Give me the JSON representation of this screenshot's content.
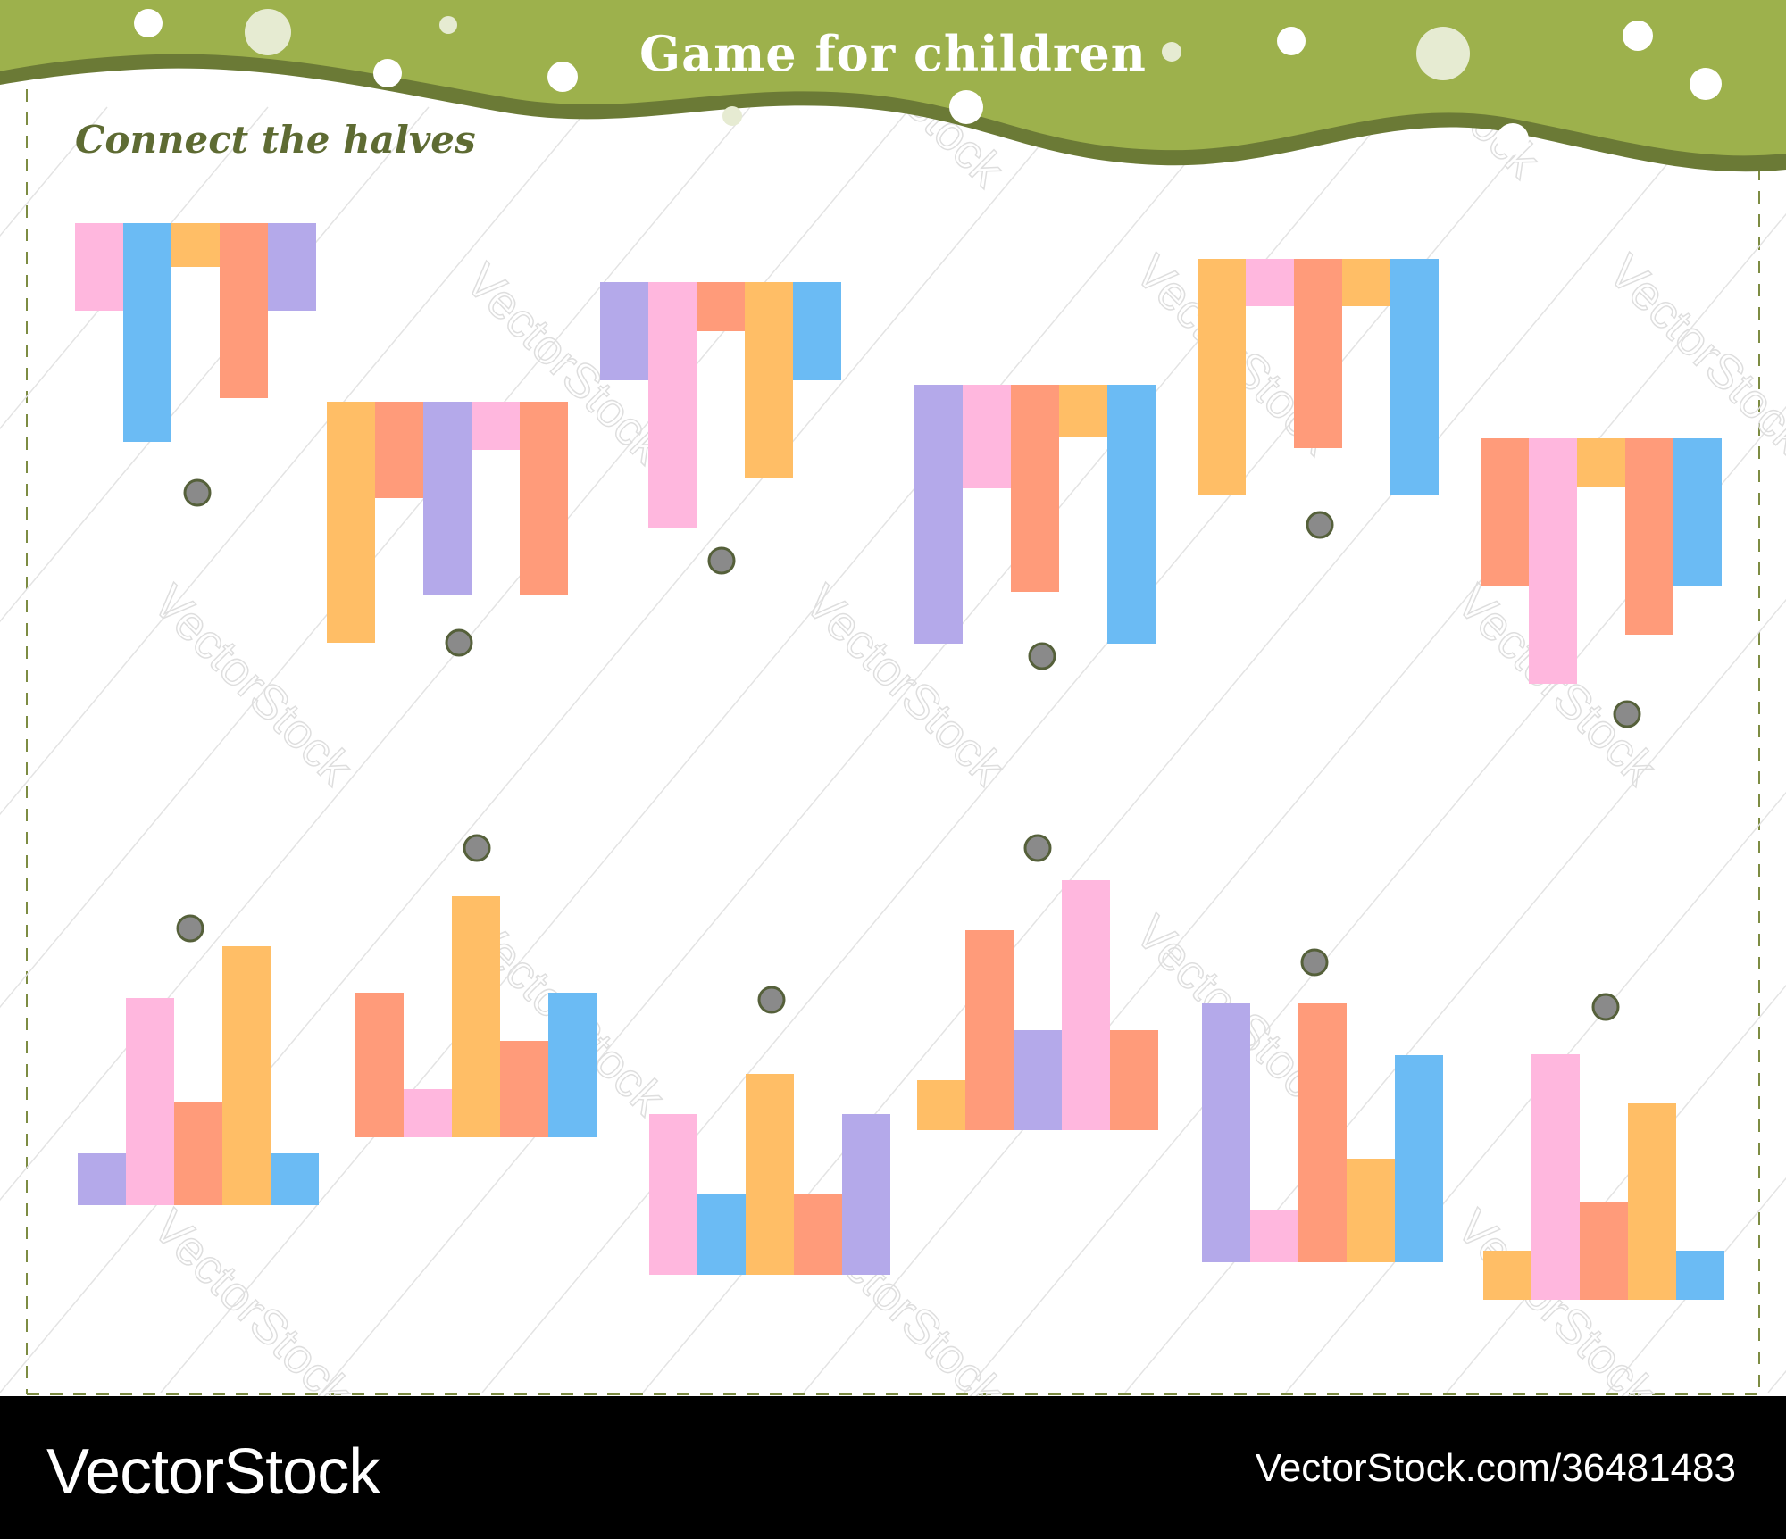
{
  "header": {
    "title": "Game for children",
    "instruction": "Connect the halves"
  },
  "footer": {
    "brand": "VectorStock",
    "image_id": "VectorStock.com/36481483"
  },
  "watermark": "VectorStock",
  "colors": {
    "header_band": "#9db14c",
    "header_band_dark": "#6b7a36",
    "pink": "#ffb7de",
    "blue": "#6bbbf4",
    "orange": "#ffbe66",
    "salmon": "#ff9b7a",
    "purple": "#b4a9ea",
    "dot": "#8a8a8a",
    "dot_border": "#55603a",
    "dashed_border": "#7d8c43"
  },
  "puzzle": {
    "top_halves": [
      {
        "id": "T1",
        "bars": [
          {
            "color": "pink",
            "length": 2
          },
          {
            "color": "blue",
            "length": 5
          },
          {
            "color": "orange",
            "length": 1
          },
          {
            "color": "salmon",
            "length": 4
          },
          {
            "color": "purple",
            "length": 2
          }
        ]
      },
      {
        "id": "T2",
        "bars": [
          {
            "color": "orange",
            "length": 5
          },
          {
            "color": "salmon",
            "length": 2
          },
          {
            "color": "purple",
            "length": 4
          },
          {
            "color": "pink",
            "length": 1
          },
          {
            "color": "salmon",
            "length": 4
          }
        ]
      },
      {
        "id": "T3",
        "bars": [
          {
            "color": "purple",
            "length": 2
          },
          {
            "color": "pink",
            "length": 5
          },
          {
            "color": "salmon",
            "length": 1
          },
          {
            "color": "orange",
            "length": 4
          },
          {
            "color": "blue",
            "length": 2
          }
        ]
      },
      {
        "id": "T4",
        "bars": [
          {
            "color": "purple",
            "length": 5
          },
          {
            "color": "pink",
            "length": 2
          },
          {
            "color": "salmon",
            "length": 4
          },
          {
            "color": "orange",
            "length": 1
          },
          {
            "color": "blue",
            "length": 5
          }
        ]
      },
      {
        "id": "T5",
        "bars": [
          {
            "color": "orange",
            "length": 5
          },
          {
            "color": "pink",
            "length": 1
          },
          {
            "color": "salmon",
            "length": 4
          },
          {
            "color": "orange",
            "length": 1
          },
          {
            "color": "blue",
            "length": 5
          }
        ]
      },
      {
        "id": "T6",
        "bars": [
          {
            "color": "salmon",
            "length": 3
          },
          {
            "color": "pink",
            "length": 5
          },
          {
            "color": "orange",
            "length": 1
          },
          {
            "color": "salmon",
            "length": 4
          },
          {
            "color": "blue",
            "length": 3
          }
        ]
      }
    ],
    "bottom_halves": [
      {
        "id": "B1",
        "bars": [
          {
            "color": "purple",
            "length": 1
          },
          {
            "color": "pink",
            "length": 4
          },
          {
            "color": "salmon",
            "length": 2
          },
          {
            "color": "orange",
            "length": 5
          },
          {
            "color": "blue",
            "length": 1
          }
        ]
      },
      {
        "id": "B2",
        "bars": [
          {
            "color": "salmon",
            "length": 3
          },
          {
            "color": "pink",
            "length": 1
          },
          {
            "color": "orange",
            "length": 5
          },
          {
            "color": "salmon",
            "length": 2
          },
          {
            "color": "blue",
            "length": 3
          }
        ]
      },
      {
        "id": "B3",
        "bars": [
          {
            "color": "pink",
            "length": 4
          },
          {
            "color": "blue",
            "length": 2
          },
          {
            "color": "orange",
            "length": 5
          },
          {
            "color": "salmon",
            "length": 2
          },
          {
            "color": "purple",
            "length": 4
          }
        ]
      },
      {
        "id": "B4",
        "bars": [
          {
            "color": "orange",
            "length": 1
          },
          {
            "color": "salmon",
            "length": 4
          },
          {
            "color": "purple",
            "length": 2
          },
          {
            "color": "pink",
            "length": 5
          },
          {
            "color": "salmon",
            "length": 2
          }
        ]
      },
      {
        "id": "B5",
        "bars": [
          {
            "color": "purple",
            "length": 5
          },
          {
            "color": "pink",
            "length": 1
          },
          {
            "color": "salmon",
            "length": 5
          },
          {
            "color": "orange",
            "length": 2
          },
          {
            "color": "blue",
            "length": 4
          }
        ]
      },
      {
        "id": "B6",
        "bars": [
          {
            "color": "orange",
            "length": 1
          },
          {
            "color": "pink",
            "length": 5
          },
          {
            "color": "salmon",
            "length": 2
          },
          {
            "color": "orange",
            "length": 4
          },
          {
            "color": "blue",
            "length": 1
          }
        ]
      }
    ]
  }
}
